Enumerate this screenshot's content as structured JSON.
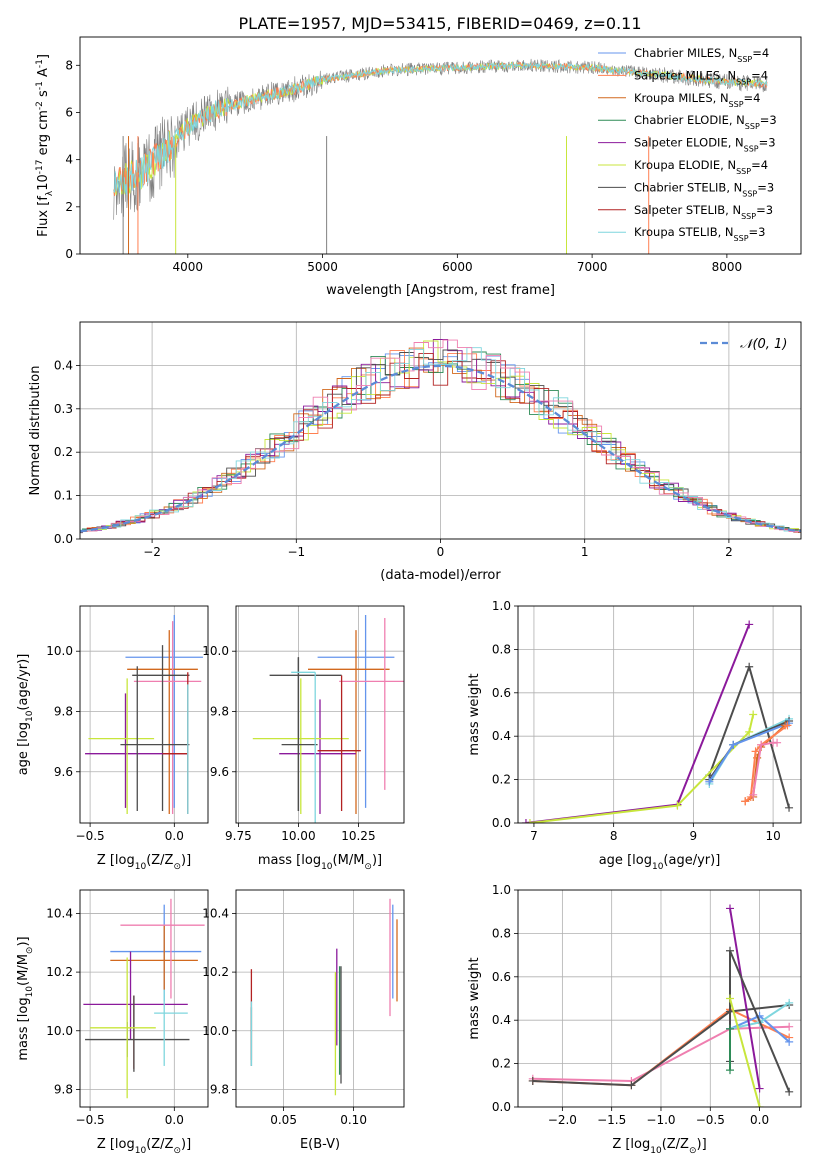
{
  "figure": {
    "title": "PLATE=1957, MJD=53415, FIBERID=0469, z=0.11"
  },
  "colors": {
    "chabrier_miles": "#6495ed",
    "salpeter_miles": "#ff7f50",
    "kroupa_miles": "#d2691e",
    "chabrier_elodie": "#2e8b57",
    "salpeter_elodie": "#8b1a9b",
    "kroupa_elodie": "#c8e63c",
    "chabrier_stelib": "#4d4d4d",
    "salpeter_stelib": "#b22222",
    "kroupa_stelib": "#7fd6de",
    "pink": "#ef7fb0",
    "gauss": "#5b8bd6",
    "observed": "#808080"
  },
  "chart_data": [
    {
      "id": "spectrum",
      "type": "line",
      "xlabel": "wavelength [Angstrom, rest frame]",
      "ylabel_main": "Flux [f",
      "ylabel_sub": "λ",
      "ylabel_rest": "10",
      "ylabel_e1": "-17",
      "ylabel_rest2": " erg cm",
      "ylabel_e2": "-2",
      "ylabel_rest3": " s",
      "ylabel_e3": "-1",
      "ylabel_rest4": " A",
      "ylabel_e4": "-1",
      "ylabel_end": "]",
      "xlim": [
        3200,
        8550
      ],
      "ylim": [
        0,
        9.2
      ],
      "xticks": [
        4000,
        5000,
        6000,
        7000,
        8000
      ],
      "yticks": [
        0,
        2,
        4,
        6,
        8
      ],
      "grid": false,
      "legend_position": "top-right",
      "legend": [
        {
          "label": "Chabrier MILES, N",
          "sub": "SSP",
          "val": "=4",
          "color": "#6495ed"
        },
        {
          "label": "Salpeter MILES, N",
          "sub": "SSP",
          "val": "=4",
          "color": "#ff7f50"
        },
        {
          "label": "Kroupa MILES, N",
          "sub": "SSP",
          "val": "=4",
          "color": "#d2691e"
        },
        {
          "label": "Chabrier ELODIE, N",
          "sub": "SSP",
          "val": "=3",
          "color": "#2e8b57"
        },
        {
          "label": "Salpeter ELODIE, N",
          "sub": "SSP",
          "val": "=3",
          "color": "#8b1a9b"
        },
        {
          "label": "Kroupa ELODIE, N",
          "sub": "SSP",
          "val": "=4",
          "color": "#c8e63c"
        },
        {
          "label": "Chabrier STELIB, N",
          "sub": "SSP",
          "val": "=3",
          "color": "#4d4d4d"
        },
        {
          "label": "Salpeter STELIB, N",
          "sub": "SSP",
          "val": "=3",
          "color": "#b22222"
        },
        {
          "label": "Kroupa STELIB, N",
          "sub": "SSP",
          "val": "=3",
          "color": "#7fd6de"
        }
      ],
      "continuum": [
        [
          3450,
          3.0
        ],
        [
          3650,
          3.4
        ],
        [
          3800,
          4.2
        ],
        [
          4000,
          5.4
        ],
        [
          4200,
          6.1
        ],
        [
          4500,
          6.6
        ],
        [
          4800,
          7.0
        ],
        [
          5000,
          7.4
        ],
        [
          5500,
          7.8
        ],
        [
          6000,
          7.9
        ],
        [
          6500,
          8.0
        ],
        [
          7000,
          7.9
        ],
        [
          7500,
          7.6
        ],
        [
          8000,
          7.3
        ],
        [
          8300,
          7.2
        ]
      ]
    },
    {
      "id": "residuals",
      "type": "line",
      "xlabel": "(data-model)/error",
      "ylabel": "Normed distribution",
      "xlim": [
        -2.5,
        2.5
      ],
      "ylim": [
        0,
        0.5
      ],
      "xticks": [
        -2,
        -1,
        0,
        1,
        2
      ],
      "yticks": [
        0.0,
        0.1,
        0.2,
        0.3,
        0.4
      ],
      "grid": true,
      "legend_position": "top-right",
      "gauss_label": "𝒩(0, 1)",
      "bin_width": 0.1
    },
    {
      "id": "age_vs_Z",
      "type": "scatter",
      "xlabel": "Z [log",
      "xlabel_sub": "10",
      "xlabel_rest": "(Z/Z",
      "xlabel_sun": "⊙",
      "xlabel_end": ")]",
      "ylabel": "age  [log",
      "ylabel_sub": "10",
      "ylabel_rest": "(age/yr)]",
      "xlim": [
        -0.56,
        0.2
      ],
      "ylim": [
        9.43,
        10.15
      ],
      "xticks": [
        -0.5,
        0.0
      ],
      "yticks": [
        9.6,
        9.8,
        10.0
      ],
      "grid": true,
      "errorbars": [
        {
          "color": "#6495ed",
          "x": 0.0,
          "xerr": [
            0.29,
            0.17
          ],
          "y": 9.98,
          "yerr": [
            0.5,
            0.14
          ]
        },
        {
          "color": "#d2691e",
          "x": -0.03,
          "xerr": [
            0.25,
            0.17
          ],
          "y": 9.94,
          "yerr": [
            0.48,
            0.13
          ]
        },
        {
          "color": "#ef7fb0",
          "x": -0.01,
          "xerr": [
            0.23,
            0.17
          ],
          "y": 9.9,
          "yerr": [
            0.44,
            0.2
          ]
        },
        {
          "color": "#4d4d4d",
          "x": -0.07,
          "xerr": [
            0.18,
            0.16
          ],
          "y": 9.92,
          "yerr": [
            0.45,
            0.1
          ]
        },
        {
          "color": "#8b1a9b",
          "x": -0.29,
          "xerr": [
            0.24,
            0.37
          ],
          "y": 9.66,
          "yerr": [
            0.18,
            0.2
          ]
        },
        {
          "color": "#c8e63c",
          "x": -0.28,
          "xerr": [
            0.23,
            0.16
          ],
          "y": 9.71,
          "yerr": [
            0.25,
            0.2
          ]
        },
        {
          "color": "#4d4d4d",
          "x": -0.22,
          "xerr": [
            0.1,
            0.31
          ],
          "y": 9.69,
          "yerr": [
            0.22,
            0.26
          ]
        },
        {
          "color": "#b22222",
          "x": 0.08,
          "xerr": [
            0.15,
            0.0
          ],
          "y": 9.66,
          "yerr": [
            0.2,
            0.27
          ]
        },
        {
          "color": "#7fd6de",
          "x": 0.08,
          "xerr": [
            0.0,
            0.0
          ],
          "y": 9.66,
          "yerr": [
            0.2,
            0.23
          ]
        }
      ]
    },
    {
      "id": "age_vs_mass",
      "type": "scatter",
      "xlabel": "mass [log",
      "xlabel_sub": "10",
      "xlabel_rest": "(M/M",
      "xlabel_sun": "⊙",
      "xlabel_end": ")]",
      "xlim": [
        9.74,
        10.44
      ],
      "ylim": [
        9.43,
        10.15
      ],
      "xticks": [
        9.75,
        10.0,
        10.25
      ],
      "yticks": [
        9.6,
        9.8,
        10.0
      ],
      "grid": true,
      "errorbars": [
        {
          "color": "#6495ed",
          "x": 10.28,
          "xerr": [
            0.2,
            0.12
          ],
          "y": 9.98,
          "yerr": [
            0.5,
            0.14
          ]
        },
        {
          "color": "#d2691e",
          "x": 10.24,
          "xerr": [
            0.2,
            0.14
          ],
          "y": 9.94,
          "yerr": [
            0.48,
            0.13
          ]
        },
        {
          "color": "#ef7fb0",
          "x": 10.36,
          "xerr": [
            0.19,
            0.08
          ],
          "y": 9.9,
          "yerr": [
            0.36,
            0.21
          ]
        },
        {
          "color": "#4d4d4d",
          "x": 10.0,
          "xerr": [
            0.12,
            0.18
          ],
          "y": 9.92,
          "yerr": [
            0.45,
            0.06
          ]
        },
        {
          "color": "#8b1a9b",
          "x": 10.09,
          "xerr": [
            0.17,
            0.15
          ],
          "y": 9.66,
          "yerr": [
            0.2,
            0.18
          ]
        },
        {
          "color": "#c8e63c",
          "x": 10.01,
          "xerr": [
            0.2,
            0.2
          ],
          "y": 9.71,
          "yerr": [
            0.25,
            0.2
          ]
        },
        {
          "color": "#4d4d4d",
          "x": 10.0,
          "xerr": [
            0.07,
            0.08
          ],
          "y": 9.69,
          "yerr": [
            0.22,
            0.29
          ]
        },
        {
          "color": "#b22222",
          "x": 10.18,
          "xerr": [
            0.1,
            0.08
          ],
          "y": 9.67,
          "yerr": [
            0.2,
            0.25
          ]
        },
        {
          "color": "#7fd6de",
          "x": 10.07,
          "xerr": [
            0.1,
            0.0
          ],
          "y": 9.93,
          "yerr": [
            0.5,
            0.0
          ]
        }
      ]
    },
    {
      "id": "mw_vs_age",
      "type": "line",
      "xlabel": "age  [log",
      "xlabel_sub": "10",
      "xlabel_rest": "(age/yr)]",
      "ylabel": "mass weight",
      "xlim": [
        6.8,
        10.35
      ],
      "ylim": [
        0,
        1.0
      ],
      "xticks": [
        7,
        8,
        9,
        10
      ],
      "yticks": [
        0.0,
        0.2,
        0.4,
        0.6,
        0.8,
        1.0
      ],
      "grid": true,
      "series": [
        {
          "color": "#8b1a9b",
          "x": [
            6.9,
            8.8,
            9.7
          ],
          "y": [
            0.0,
            0.085,
            0.915
          ]
        },
        {
          "color": "#4d4d4d",
          "x": [
            9.2,
            9.7,
            10.2
          ],
          "y": [
            0.22,
            0.72,
            0.07
          ]
        },
        {
          "color": "#c8e63c",
          "x": [
            6.95,
            8.8,
            9.7,
            9.75
          ],
          "y": [
            0.0,
            0.08,
            0.42,
            0.5
          ]
        },
        {
          "color": "#7fd6de",
          "x": [
            9.2,
            9.5,
            10.2
          ],
          "y": [
            0.18,
            0.36,
            0.48
          ]
        },
        {
          "color": "#4d4d4d",
          "x": [
            9.2,
            9.5,
            10.2
          ],
          "y": [
            0.2,
            0.36,
            0.47
          ]
        },
        {
          "color": "#6495ed",
          "x": [
            9.2,
            9.5,
            10.2
          ],
          "y": [
            0.19,
            0.36,
            0.46
          ]
        },
        {
          "color": "#d2691e",
          "x": [
            9.65,
            9.75,
            9.8,
            9.85,
            10.15
          ],
          "y": [
            0.1,
            0.12,
            0.3,
            0.35,
            0.45
          ]
        },
        {
          "color": "#ff7f50",
          "x": [
            9.65,
            9.72,
            9.78,
            9.85,
            10.18
          ],
          "y": [
            0.1,
            0.12,
            0.33,
            0.36,
            0.45
          ]
        },
        {
          "color": "#ef7fb0",
          "x": [
            9.75,
            9.85,
            10.0,
            10.05
          ],
          "y": [
            0.13,
            0.36,
            0.37,
            0.37
          ]
        }
      ]
    },
    {
      "id": "mass_vs_Z",
      "type": "scatter",
      "xlabel": "Z [log",
      "xlabel_sub": "10",
      "xlabel_rest": "(Z/Z",
      "xlabel_sun": "⊙",
      "xlabel_end": ")]",
      "ylabel": "mass [log",
      "ylabel_sub": "10",
      "ylabel_rest": "(M/M",
      "ylabel_sun": "⊙",
      "ylabel_end": ")]",
      "xlim": [
        -0.56,
        0.2
      ],
      "ylim": [
        9.74,
        10.48
      ],
      "xticks": [
        -0.5,
        0.0
      ],
      "yticks": [
        9.8,
        10.0,
        10.2,
        10.4
      ],
      "grid": true,
      "errorbars": [
        {
          "color": "#6495ed",
          "x": -0.06,
          "xerr": [
            0.32,
            0.22
          ],
          "y": 10.27,
          "yerr": [
            0.17,
            0.16
          ]
        },
        {
          "color": "#d2691e",
          "x": -0.06,
          "xerr": [
            0.32,
            0.2
          ],
          "y": 10.24,
          "yerr": [
            0.1,
            0.12
          ]
        },
        {
          "color": "#ef7fb0",
          "x": -0.02,
          "xerr": [
            0.3,
            0.2
          ],
          "y": 10.36,
          "yerr": [
            0.25,
            0.09
          ]
        },
        {
          "color": "#8b1a9b",
          "x": -0.26,
          "xerr": [
            0.28,
            0.34
          ],
          "y": 10.09,
          "yerr": [
            0.12,
            0.18
          ]
        },
        {
          "color": "#b22222",
          "x": -0.24,
          "xerr": [
            0.0,
            0.0
          ],
          "y": 10.0,
          "yerr": [
            0.13,
            0.12
          ]
        },
        {
          "color": "#4d4d4d",
          "x": -0.28,
          "xerr": [
            0.25,
            0.37
          ],
          "y": 9.97,
          "yerr": [
            0.06,
            0.06
          ]
        },
        {
          "color": "#4d4d4d",
          "x": -0.24,
          "xerr": [
            0.0,
            0.0
          ],
          "y": 10.0,
          "yerr": [
            0.14,
            0.12
          ]
        },
        {
          "color": "#c8e63c",
          "x": -0.28,
          "xerr": [
            0.22,
            0.17
          ],
          "y": 10.01,
          "yerr": [
            0.24,
            0.24
          ]
        },
        {
          "color": "#7fd6de",
          "x": -0.06,
          "xerr": [
            0.06,
            0.14
          ],
          "y": 10.06,
          "yerr": [
            0.18,
            0.08
          ]
        }
      ]
    },
    {
      "id": "mass_vs_ebv",
      "type": "scatter",
      "xlabel": "E(B-V)",
      "xlim": [
        0.016,
        0.136
      ],
      "ylim": [
        9.74,
        10.48
      ],
      "xticks": [
        0.05,
        0.1
      ],
      "yticks": [
        9.8,
        10.0,
        10.2,
        10.4
      ],
      "grid": true,
      "errorbars": [
        {
          "color": "#b22222",
          "x": 0.027,
          "y": 10.02,
          "yerr": [
            0.12,
            0.19
          ]
        },
        {
          "color": "#4d4d4d",
          "x": 0.027,
          "y": 9.98,
          "yerr": [
            0.1,
            0.1
          ]
        },
        {
          "color": "#7fd6de",
          "x": 0.027,
          "y": 10.0,
          "yerr": [
            0.12,
            0.1
          ]
        },
        {
          "color": "#8b1a9b",
          "x": 0.088,
          "y": 10.1,
          "yerr": [
            0.15,
            0.18
          ]
        },
        {
          "color": "#c8e63c",
          "x": 0.087,
          "y": 10.0,
          "yerr": [
            0.22,
            0.2
          ]
        },
        {
          "color": "#2e8b57",
          "x": 0.09,
          "y": 10.05,
          "yerr": [
            0.2,
            0.17
          ]
        },
        {
          "color": "#4d4d4d",
          "x": 0.091,
          "y": 10.0,
          "yerr": [
            0.18,
            0.22
          ]
        },
        {
          "color": "#ef7fb0",
          "x": 0.126,
          "y": 10.25,
          "yerr": [
            0.2,
            0.2
          ]
        },
        {
          "color": "#6495ed",
          "x": 0.128,
          "y": 10.27,
          "yerr": [
            0.16,
            0.16
          ]
        },
        {
          "color": "#d2691e",
          "x": 0.131,
          "y": 10.24,
          "yerr": [
            0.14,
            0.14
          ]
        }
      ]
    },
    {
      "id": "mw_vs_Z",
      "type": "line",
      "xlabel": "Z [log",
      "xlabel_sub": "10",
      "xlabel_rest": "(Z/Z",
      "xlabel_sun": "⊙",
      "xlabel_end": ")]",
      "ylabel": "mass weight",
      "xlim": [
        -2.45,
        0.42
      ],
      "ylim": [
        0,
        1.0
      ],
      "xticks": [
        -2.0,
        -1.5,
        -1.0,
        -0.5,
        0.0
      ],
      "yticks": [
        0.0,
        0.2,
        0.4,
        0.6,
        0.8,
        1.0
      ],
      "grid": true,
      "series": [
        {
          "color": "#ef7fb0",
          "x": [
            -2.3,
            -1.3,
            -0.3,
            0.3
          ],
          "y": [
            0.13,
            0.12,
            0.36,
            0.37
          ]
        },
        {
          "color": "#ff7f50",
          "x": [
            -2.3,
            -1.3,
            -0.3,
            0.3
          ],
          "y": [
            0.12,
            0.1,
            0.45,
            0.32
          ]
        },
        {
          "color": "#4d4d4d",
          "x": [
            -2.3,
            -1.3,
            -0.3,
            0.3
          ],
          "y": [
            0.12,
            0.1,
            0.44,
            0.47
          ]
        },
        {
          "color": "#6495ed",
          "x": [
            -0.3,
            0.0,
            0.3
          ],
          "y": [
            0.36,
            0.42,
            0.3
          ]
        },
        {
          "color": "#7fd6de",
          "x": [
            -0.3,
            0.0,
            0.3
          ],
          "y": [
            0.36,
            0.39,
            0.48
          ]
        },
        {
          "color": "#8b1a9b",
          "x": [
            -0.3,
            0.0
          ],
          "y": [
            0.915,
            0.085
          ]
        },
        {
          "color": "#4d4d4d",
          "x": [
            -0.3,
            -0.3,
            0.3
          ],
          "y": [
            0.21,
            0.72,
            0.07
          ]
        },
        {
          "color": "#c8e63c",
          "x": [
            -0.3,
            0.0
          ],
          "y": [
            0.5,
            0.0
          ]
        },
        {
          "color": "#2e8b57",
          "x": [
            -0.3,
            -0.3
          ],
          "y": [
            0.17,
            0.36
          ]
        }
      ]
    }
  ]
}
